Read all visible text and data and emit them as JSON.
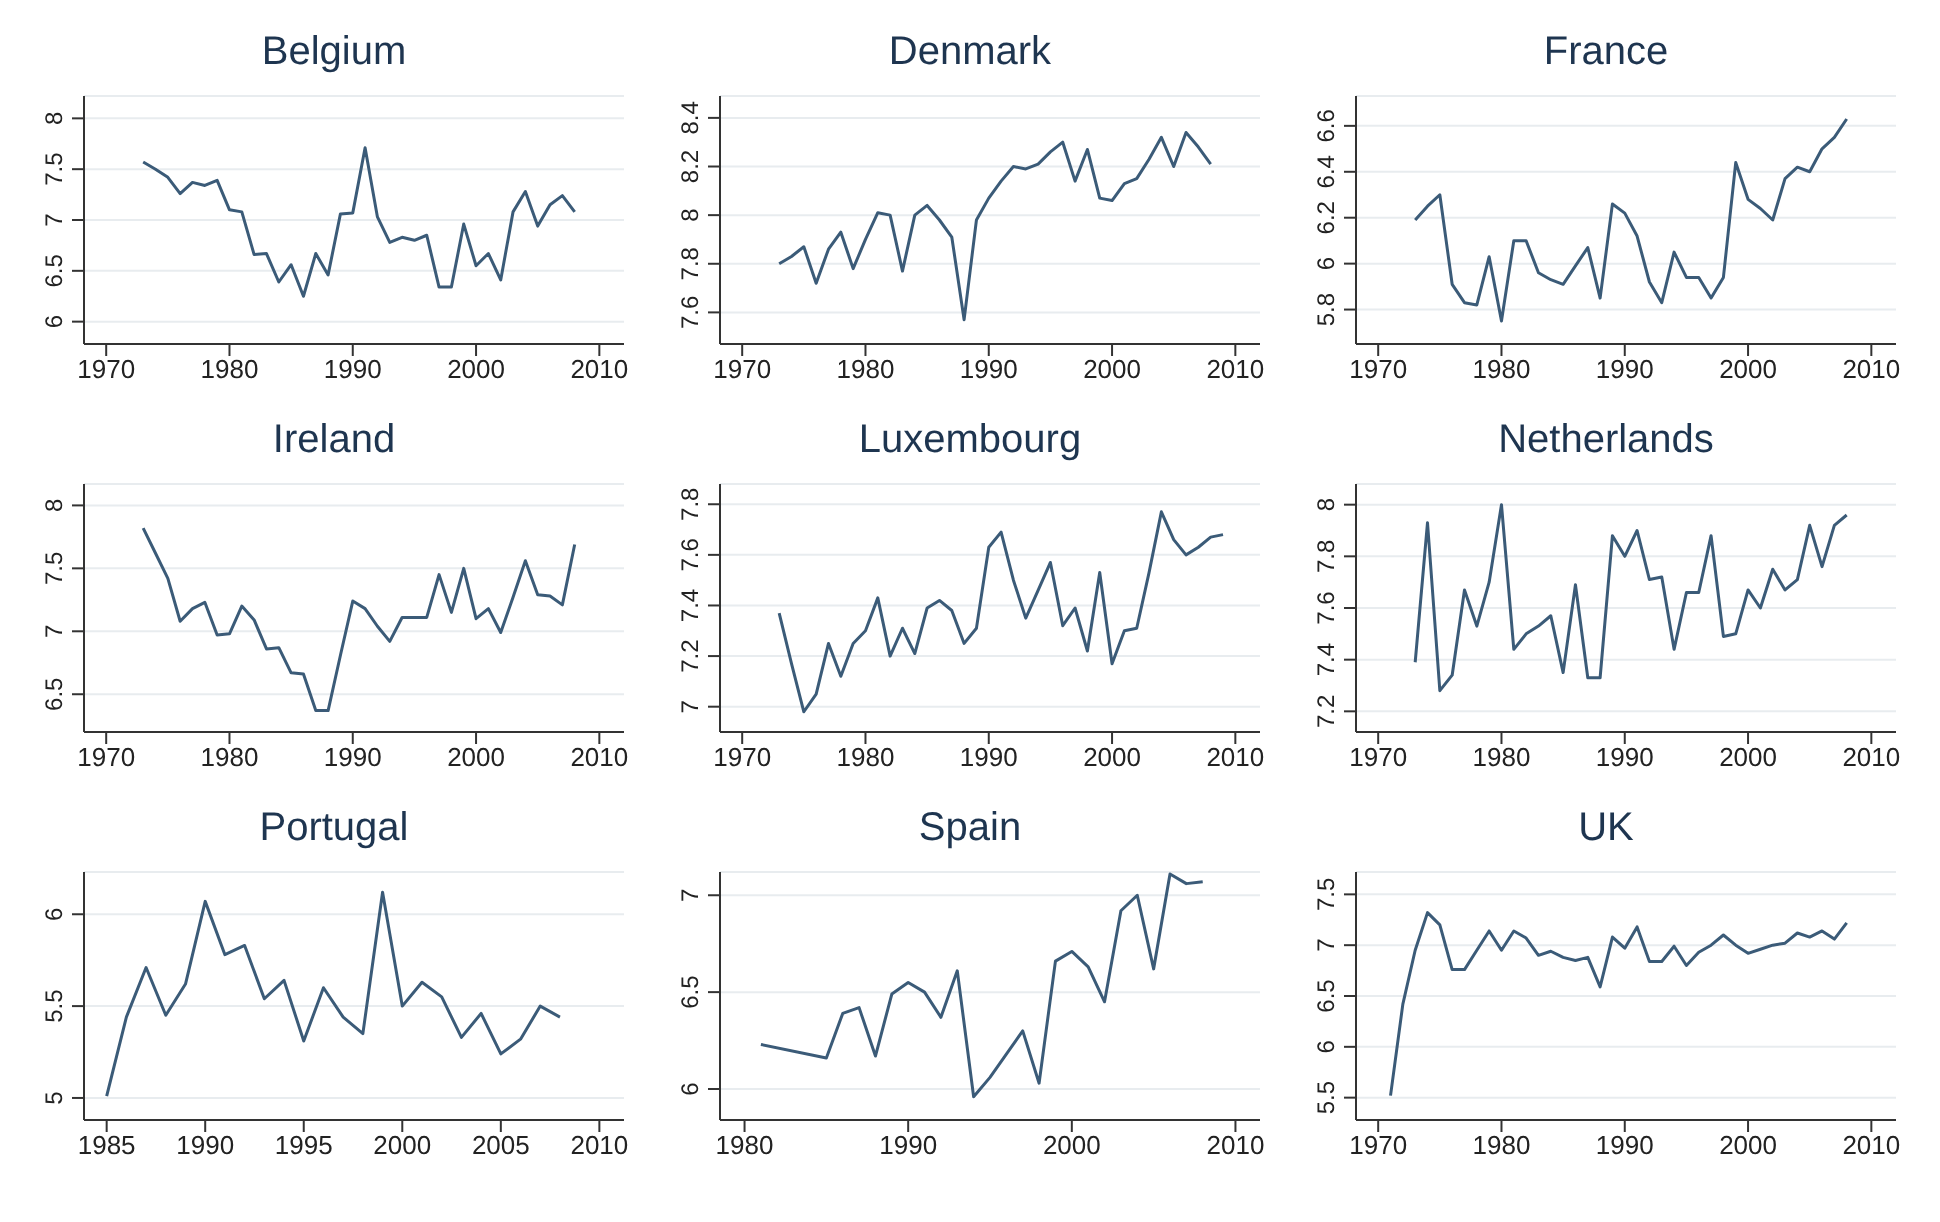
{
  "chart_data": [
    {
      "type": "line",
      "title": "Belgium",
      "xlim": [
        1968.2,
        2012
      ],
      "xticks": [
        1970,
        1980,
        1990,
        2000,
        2010
      ],
      "ylim": [
        5.78,
        8.22
      ],
      "yticks": [
        6,
        6.5,
        7,
        7.5,
        8
      ],
      "grid": "y",
      "series": [
        {
          "color": "#3b5b78",
          "x": [
            1973,
            1974,
            1975,
            1976,
            1977,
            1978,
            1979,
            1980,
            1981,
            1982,
            1983,
            1984,
            1985,
            1986,
            1987,
            1988,
            1989,
            1990,
            1991,
            1992,
            1993,
            1994,
            1995,
            1996,
            1997,
            1998,
            1999,
            2000,
            2001,
            2002,
            2003,
            2004,
            2005,
            2006,
            2007,
            2008
          ],
          "values": [
            7.57,
            7.5,
            7.42,
            7.26,
            7.37,
            7.34,
            7.39,
            7.1,
            7.08,
            6.66,
            6.67,
            6.39,
            6.56,
            6.25,
            6.67,
            6.46,
            7.06,
            7.07,
            7.71,
            7.03,
            6.78,
            6.83,
            6.8,
            6.85,
            6.34,
            6.34,
            6.96,
            6.55,
            6.67,
            6.41,
            7.08,
            7.28,
            6.94,
            7.15,
            7.24,
            7.08
          ]
        }
      ]
    },
    {
      "type": "line",
      "title": "Denmark",
      "xlim": [
        1968.2,
        2012
      ],
      "xticks": [
        1970,
        1980,
        1990,
        2000,
        2010
      ],
      "ylim": [
        7.47,
        8.49
      ],
      "yticks": [
        7.6,
        7.8,
        8,
        8.2,
        8.4
      ],
      "grid": "y",
      "series": [
        {
          "color": "#3b5b78",
          "x": [
            1973,
            1974,
            1975,
            1976,
            1977,
            1978,
            1979,
            1980,
            1981,
            1982,
            1983,
            1984,
            1985,
            1986,
            1987,
            1988,
            1989,
            1990,
            1991,
            1992,
            1993,
            1994,
            1995,
            1996,
            1997,
            1998,
            1999,
            2000,
            2001,
            2002,
            2003,
            2004,
            2005,
            2006,
            2007,
            2008
          ],
          "values": [
            7.8,
            7.83,
            7.87,
            7.72,
            7.86,
            7.93,
            7.78,
            7.9,
            8.01,
            8.0,
            7.77,
            8.0,
            8.04,
            7.98,
            7.91,
            7.57,
            7.98,
            8.07,
            8.14,
            8.2,
            8.19,
            8.21,
            8.26,
            8.3,
            8.14,
            8.27,
            8.07,
            8.06,
            8.13,
            8.15,
            8.23,
            8.32,
            8.2,
            8.34,
            8.28,
            8.21
          ]
        }
      ]
    },
    {
      "type": "line",
      "title": "France",
      "xlim": [
        1968.2,
        2012
      ],
      "xticks": [
        1970,
        1980,
        1990,
        2000,
        2010
      ],
      "ylim": [
        5.65,
        6.73
      ],
      "yticks": [
        5.8,
        6,
        6.2,
        6.4,
        6.6
      ],
      "grid": "y",
      "series": [
        {
          "color": "#3b5b78",
          "x": [
            1973,
            1974,
            1975,
            1976,
            1977,
            1978,
            1979,
            1980,
            1981,
            1982,
            1983,
            1984,
            1985,
            1986,
            1987,
            1988,
            1989,
            1990,
            1991,
            1992,
            1993,
            1994,
            1995,
            1996,
            1997,
            1998,
            1999,
            2000,
            2001,
            2002,
            2003,
            2004,
            2005,
            2006,
            2007,
            2008
          ],
          "values": [
            6.19,
            6.25,
            6.3,
            5.91,
            5.83,
            5.82,
            6.03,
            5.75,
            6.1,
            6.1,
            5.96,
            5.93,
            5.91,
            5.99,
            6.07,
            5.85,
            6.26,
            6.22,
            6.12,
            5.92,
            5.83,
            6.05,
            5.94,
            5.94,
            5.85,
            5.94,
            6.44,
            6.28,
            6.24,
            6.19,
            6.37,
            6.42,
            6.4,
            6.5,
            6.55,
            6.63
          ]
        }
      ]
    },
    {
      "type": "line",
      "title": "Ireland",
      "xlim": [
        1968.2,
        2012
      ],
      "xticks": [
        1970,
        1980,
        1990,
        2000,
        2010
      ],
      "ylim": [
        6.2,
        8.17
      ],
      "yticks": [
        6.5,
        7,
        7.5,
        8
      ],
      "grid": "y",
      "series": [
        {
          "color": "#3b5b78",
          "x": [
            1973,
            1974,
            1975,
            1976,
            1977,
            1978,
            1979,
            1980,
            1981,
            1982,
            1983,
            1984,
            1985,
            1986,
            1987,
            1988,
            1989,
            1990,
            1991,
            1992,
            1993,
            1994,
            1995,
            1996,
            1997,
            1998,
            1999,
            2000,
            2001,
            2002,
            2003,
            2004,
            2005,
            2006,
            2007,
            2008
          ],
          "values": [
            7.82,
            7.62,
            7.42,
            7.08,
            7.18,
            7.23,
            6.97,
            6.98,
            7.2,
            7.09,
            6.86,
            6.87,
            6.67,
            6.66,
            6.37,
            6.37,
            6.81,
            7.24,
            7.18,
            7.04,
            6.92,
            7.11,
            7.11,
            7.11,
            7.45,
            7.15,
            7.5,
            7.1,
            7.18,
            6.99,
            7.27,
            7.56,
            7.29,
            7.28,
            7.21,
            7.69
          ]
        }
      ]
    },
    {
      "type": "line",
      "title": "Luxembourg",
      "xlim": [
        1968.2,
        2012
      ],
      "xticks": [
        1970,
        1980,
        1990,
        2000,
        2010
      ],
      "ylim": [
        6.9,
        7.88
      ],
      "yticks": [
        7,
        7.2,
        7.4,
        7.6,
        7.8
      ],
      "grid": "y",
      "series": [
        {
          "color": "#3b5b78",
          "x": [
            1973,
            1974,
            1975,
            1976,
            1977,
            1978,
            1979,
            1980,
            1981,
            1982,
            1983,
            1984,
            1985,
            1986,
            1987,
            1988,
            1989,
            1990,
            1991,
            1992,
            1993,
            1994,
            1995,
            1996,
            1997,
            1998,
            1999,
            2000,
            2001,
            2002,
            2003,
            2004,
            2005,
            2006,
            2007,
            2008,
            2009
          ],
          "values": [
            7.37,
            7.17,
            6.98,
            7.05,
            7.25,
            7.12,
            7.25,
            7.3,
            7.43,
            7.2,
            7.31,
            7.21,
            7.39,
            7.42,
            7.38,
            7.25,
            7.31,
            7.63,
            7.69,
            7.5,
            7.35,
            7.46,
            7.57,
            7.32,
            7.39,
            7.22,
            7.53,
            7.17,
            7.3,
            7.31,
            7.53,
            7.77,
            7.66,
            7.6,
            7.63,
            7.67,
            7.68
          ]
        }
      ]
    },
    {
      "type": "line",
      "title": "Netherlands",
      "xlim": [
        1968.2,
        2012
      ],
      "xticks": [
        1970,
        1980,
        1990,
        2000,
        2010
      ],
      "ylim": [
        7.12,
        8.08
      ],
      "yticks": [
        7.2,
        7.4,
        7.6,
        7.8,
        8
      ],
      "grid": "y",
      "series": [
        {
          "color": "#3b5b78",
          "x": [
            1973,
            1974,
            1975,
            1976,
            1977,
            1978,
            1979,
            1980,
            1981,
            1982,
            1983,
            1984,
            1985,
            1986,
            1987,
            1988,
            1989,
            1990,
            1991,
            1992,
            1993,
            1994,
            1995,
            1996,
            1997,
            1998,
            1999,
            2000,
            2001,
            2002,
            2003,
            2004,
            2005,
            2006,
            2007,
            2008
          ],
          "values": [
            7.39,
            7.93,
            7.28,
            7.34,
            7.67,
            7.53,
            7.7,
            8.0,
            7.44,
            7.5,
            7.53,
            7.57,
            7.35,
            7.69,
            7.33,
            7.33,
            7.88,
            7.8,
            7.9,
            7.71,
            7.72,
            7.44,
            7.66,
            7.66,
            7.88,
            7.49,
            7.5,
            7.67,
            7.6,
            7.75,
            7.67,
            7.71,
            7.92,
            7.76,
            7.92,
            7.96
          ]
        }
      ]
    },
    {
      "type": "line",
      "title": "Portugal",
      "xlim": [
        1983.85,
        2011.25
      ],
      "xticks": [
        1985,
        1990,
        1995,
        2000,
        2005,
        2010
      ],
      "ylim": [
        4.88,
        6.23
      ],
      "yticks": [
        5,
        5.5,
        6
      ],
      "grid": "y",
      "series": [
        {
          "color": "#3b5b78",
          "x": [
            1985,
            1986,
            1987,
            1988,
            1989,
            1990,
            1991,
            1992,
            1993,
            1994,
            1995,
            1996,
            1997,
            1998,
            1999,
            2000,
            2001,
            2002,
            2003,
            2004,
            2005,
            2006,
            2007,
            2008
          ],
          "values": [
            5.01,
            5.44,
            5.71,
            5.45,
            5.62,
            6.07,
            5.78,
            5.83,
            5.54,
            5.64,
            5.31,
            5.6,
            5.44,
            5.35,
            6.12,
            5.5,
            5.63,
            5.55,
            5.33,
            5.46,
            5.24,
            5.32,
            5.5,
            5.44
          ]
        }
      ]
    },
    {
      "type": "line",
      "title": "Spain",
      "xlim": [
        1978.5,
        2011.5
      ],
      "xticks": [
        1980,
        1990,
        2000,
        2010
      ],
      "ylim": [
        5.84,
        7.12
      ],
      "yticks": [
        6,
        6.5,
        7
      ],
      "grid": "y",
      "series": [
        {
          "color": "#3b5b78",
          "x": [
            1981,
            1985,
            1986,
            1987,
            1988,
            1989,
            1990,
            1991,
            1992,
            1993,
            1994,
            1995,
            1996,
            1997,
            1998,
            1999,
            2000,
            2001,
            2002,
            2003,
            2004,
            2005,
            2006,
            2007,
            2008
          ],
          "values": [
            6.23,
            6.16,
            6.39,
            6.42,
            6.17,
            6.49,
            6.55,
            6.5,
            6.37,
            6.61,
            5.96,
            6.06,
            6.18,
            6.3,
            6.03,
            6.66,
            6.71,
            6.63,
            6.45,
            6.92,
            7.0,
            6.62,
            7.11,
            7.06,
            7.07
          ]
        }
      ]
    },
    {
      "type": "line",
      "title": "UK",
      "xlim": [
        1968.2,
        2012
      ],
      "xticks": [
        1970,
        1980,
        1990,
        2000,
        2010
      ],
      "ylim": [
        5.28,
        7.72
      ],
      "yticks": [
        5.5,
        6,
        6.5,
        7,
        7.5
      ],
      "grid": "y",
      "series": [
        {
          "color": "#3b5b78",
          "x": [
            1971,
            1972,
            1973,
            1974,
            1975,
            1976,
            1977,
            1978,
            1979,
            1980,
            1981,
            1982,
            1983,
            1984,
            1985,
            1986,
            1987,
            1988,
            1989,
            1990,
            1991,
            1992,
            1993,
            1994,
            1995,
            1996,
            1997,
            1998,
            1999,
            2000,
            2001,
            2002,
            2003,
            2004,
            2005,
            2006,
            2007,
            2008
          ],
          "values": [
            5.52,
            6.42,
            6.95,
            7.32,
            7.2,
            6.76,
            6.76,
            6.95,
            7.14,
            6.95,
            7.14,
            7.07,
            6.9,
            6.94,
            6.88,
            6.85,
            6.88,
            6.59,
            7.08,
            6.97,
            7.18,
            6.84,
            6.84,
            6.99,
            6.8,
            6.93,
            7.0,
            7.1,
            7.0,
            6.92,
            6.96,
            7.0,
            7.02,
            7.12,
            7.08,
            7.14,
            7.06,
            7.22
          ]
        }
      ]
    }
  ]
}
